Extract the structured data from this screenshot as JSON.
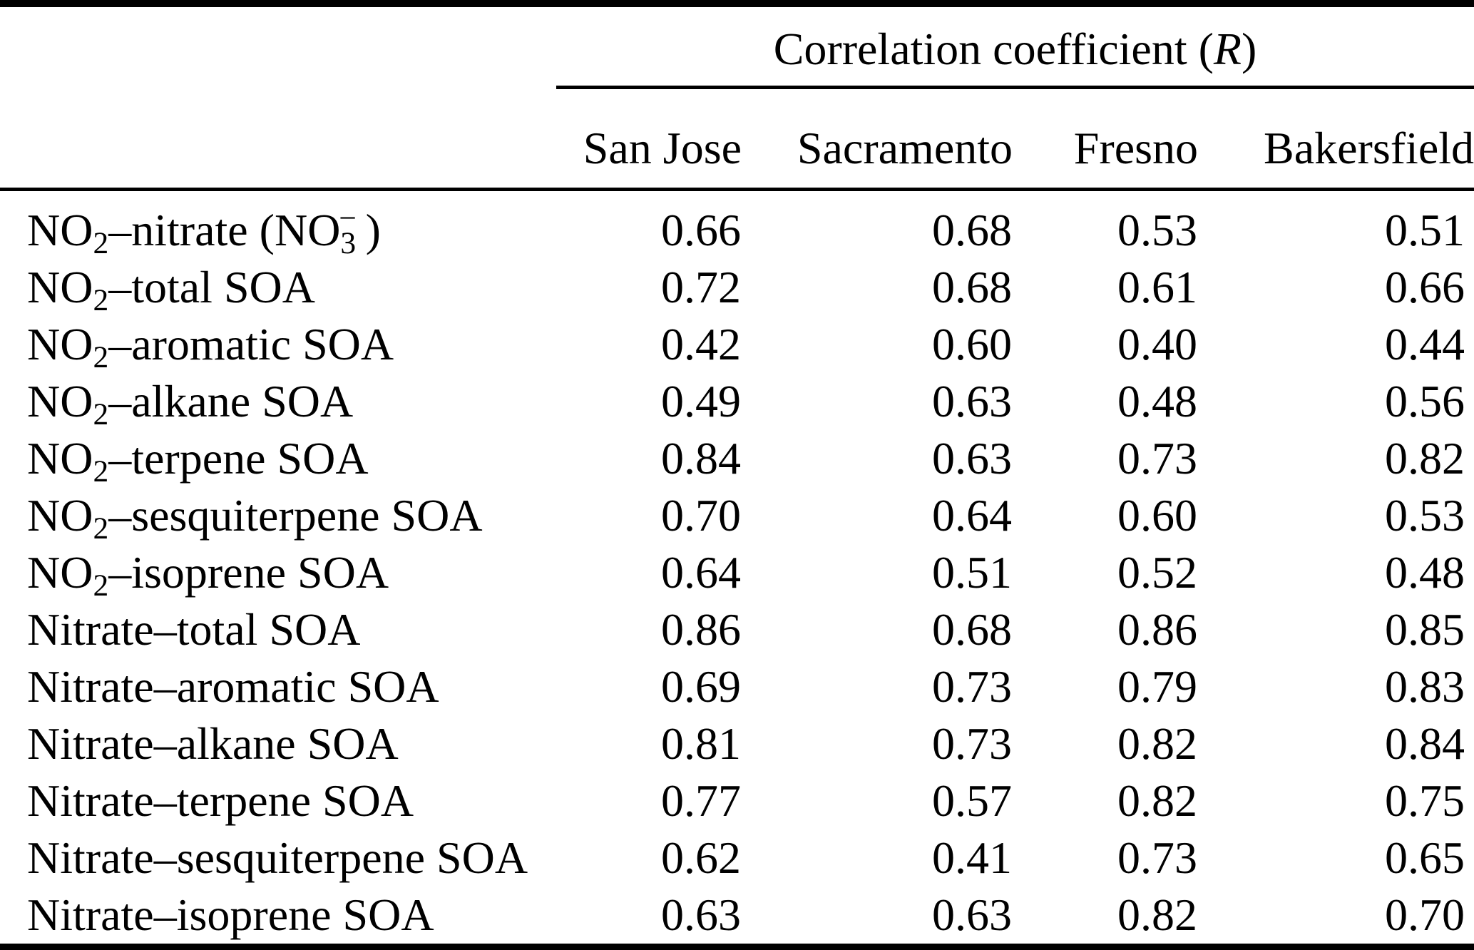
{
  "table": {
    "group_header": "Correlation coefficient (*R*)",
    "columns": [
      "San Jose",
      "Sacramento",
      "Fresno",
      "Bakersfield"
    ],
    "rows": [
      {
        "label": "NO~2~–nitrate (NO~3~^−^ )",
        "values": [
          "0.66",
          "0.68",
          "0.53",
          "0.51"
        ]
      },
      {
        "label": "NO~2~–total SOA",
        "values": [
          "0.72",
          "0.68",
          "0.61",
          "0.66"
        ]
      },
      {
        "label": "NO~2~–aromatic SOA",
        "values": [
          "0.42",
          "0.60",
          "0.40",
          "0.44"
        ]
      },
      {
        "label": "NO~2~–alkane SOA",
        "values": [
          "0.49",
          "0.63",
          "0.48",
          "0.56"
        ]
      },
      {
        "label": "NO~2~–terpene SOA",
        "values": [
          "0.84",
          "0.63",
          "0.73",
          "0.82"
        ]
      },
      {
        "label": "NO~2~–sesquiterpene SOA",
        "values": [
          "0.70",
          "0.64",
          "0.60",
          "0.53"
        ]
      },
      {
        "label": "NO~2~–isoprene SOA",
        "values": [
          "0.64",
          "0.51",
          "0.52",
          "0.48"
        ]
      },
      {
        "label": "Nitrate–total SOA",
        "values": [
          "0.86",
          "0.68",
          "0.86",
          "0.85"
        ]
      },
      {
        "label": "Nitrate–aromatic SOA",
        "values": [
          "0.69",
          "0.73",
          "0.79",
          "0.83"
        ]
      },
      {
        "label": "Nitrate–alkane SOA",
        "values": [
          "0.81",
          "0.73",
          "0.82",
          "0.84"
        ]
      },
      {
        "label": "Nitrate–terpene SOA",
        "values": [
          "0.77",
          "0.57",
          "0.82",
          "0.75"
        ]
      },
      {
        "label": "Nitrate–sesquiterpene SOA",
        "values": [
          "0.62",
          "0.41",
          "0.73",
          "0.65"
        ]
      },
      {
        "label": "Nitrate–isoprene SOA",
        "values": [
          "0.63",
          "0.63",
          "0.82",
          "0.70"
        ]
      }
    ]
  },
  "chart_data": {
    "type": "table",
    "title": "Correlation coefficient (R)",
    "row_header": "",
    "categories": [
      "NO2-nitrate (NO3-)",
      "NO2-total SOA",
      "NO2-aromatic SOA",
      "NO2-alkane SOA",
      "NO2-terpene SOA",
      "NO2-sesquiterpene SOA",
      "NO2-isoprene SOA",
      "Nitrate-total SOA",
      "Nitrate-aromatic SOA",
      "Nitrate-alkane SOA",
      "Nitrate-terpene SOA",
      "Nitrate-sesquiterpene SOA",
      "Nitrate-isoprene SOA"
    ],
    "series": [
      {
        "name": "San Jose",
        "values": [
          0.66,
          0.72,
          0.42,
          0.49,
          0.84,
          0.7,
          0.64,
          0.86,
          0.69,
          0.81,
          0.77,
          0.62,
          0.63
        ]
      },
      {
        "name": "Sacramento",
        "values": [
          0.68,
          0.68,
          0.6,
          0.63,
          0.63,
          0.64,
          0.51,
          0.68,
          0.73,
          0.73,
          0.57,
          0.41,
          0.63
        ]
      },
      {
        "name": "Fresno",
        "values": [
          0.53,
          0.61,
          0.4,
          0.48,
          0.73,
          0.6,
          0.52,
          0.86,
          0.79,
          0.82,
          0.82,
          0.73,
          0.82
        ]
      },
      {
        "name": "Bakersfield",
        "values": [
          0.51,
          0.66,
          0.44,
          0.56,
          0.82,
          0.53,
          0.48,
          0.85,
          0.83,
          0.84,
          0.75,
          0.65,
          0.7
        ]
      }
    ]
  },
  "colors": {
    "text": "#000000",
    "background": "#ffffff",
    "rule": "#000000"
  }
}
